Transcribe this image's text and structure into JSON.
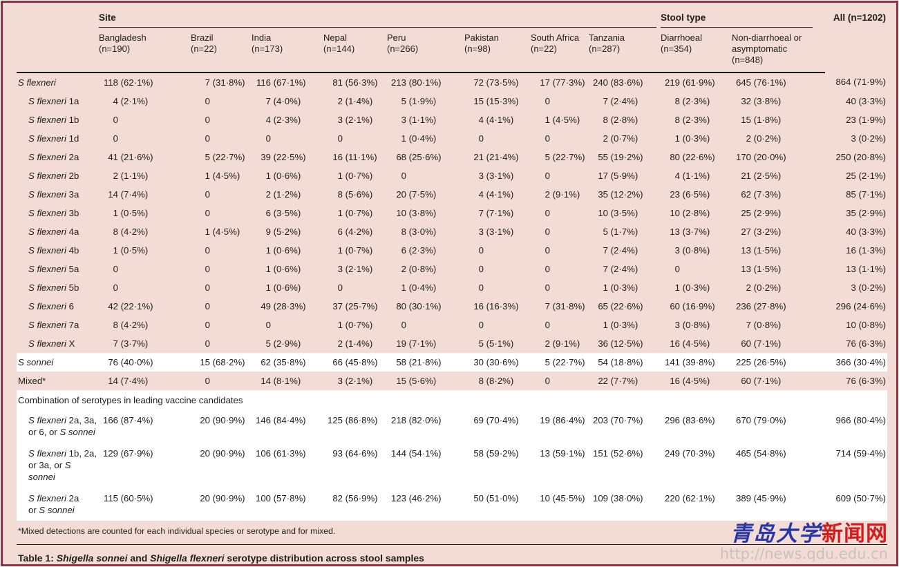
{
  "palette": {
    "table_background": "#f3dcd5",
    "border_red": "#9e2b3f",
    "highlight_row": "#ffffff",
    "rule_black": "#1a1a1a",
    "watermark_blue": "#2936a6",
    "watermark_red": "#d31b1b",
    "watermark_gray": "#c9c2bc"
  },
  "header": {
    "site_group": "Site",
    "stool_group": "Stool type",
    "all_label": "All (n=1202)",
    "site_columns": [
      {
        "name": "Bangladesh",
        "n": "(n=190)"
      },
      {
        "name": "Brazil",
        "n": "(n=22)"
      },
      {
        "name": "India",
        "n": "(n=173)"
      },
      {
        "name": "Nepal",
        "n": "(n=144)"
      },
      {
        "name": "Peru",
        "n": "(n=266)"
      },
      {
        "name": "Pakistan",
        "n": "(n=98)"
      },
      {
        "name": "South Africa",
        "n": "(n=22)"
      },
      {
        "name": "Tanzania",
        "n": "(n=287)"
      }
    ],
    "stool_columns": [
      {
        "name": "Diarrhoeal",
        "n": "(n=354)"
      },
      {
        "name": "Non-diarrhoeal or asymptomatic",
        "n": "(n=848)"
      }
    ]
  },
  "rows": [
    {
      "type": "data",
      "indent": 0,
      "hl": false,
      "label": [
        [
          {
            "t": "S flexneri",
            "i": true
          }
        ]
      ],
      "values": [
        "118 (62·1%)",
        "7 (31·8%)",
        "116 (67·1%)",
        "81 (56·3%)",
        "213 (80·1%)",
        "72 (73·5%)",
        "17 (77·3%)",
        "240 (83·6%)",
        "219 (61·9%)",
        "645 (76·1%)",
        "864 (71·9%)"
      ]
    },
    {
      "type": "data",
      "indent": 1,
      "hl": false,
      "label": [
        [
          {
            "t": "S flexneri",
            "i": true
          },
          {
            "t": " 1a",
            "i": false
          }
        ]
      ],
      "values": [
        "4 (2·1%)",
        "0",
        "7 (4·0%)",
        "2 (1·4%)",
        "5 (1·9%)",
        "15 (15·3%)",
        "0",
        "7 (2·4%)",
        "8 (2·3%)",
        "32 (3·8%)",
        "40 (3·3%)"
      ]
    },
    {
      "type": "data",
      "indent": 1,
      "hl": false,
      "label": [
        [
          {
            "t": "S flexneri",
            "i": true
          },
          {
            "t": " 1b",
            "i": false
          }
        ]
      ],
      "values": [
        "0",
        "0",
        "4 (2·3%)",
        "3 (2·1%)",
        "3 (1·1%)",
        "4 (4·1%)",
        "1 (4·5%)",
        "8 (2·8%)",
        "8 (2·3%)",
        "15 (1·8%)",
        "23 (1·9%)"
      ]
    },
    {
      "type": "data",
      "indent": 1,
      "hl": false,
      "label": [
        [
          {
            "t": "S flexneri",
            "i": true
          },
          {
            "t": " 1d",
            "i": false
          }
        ]
      ],
      "values": [
        "0",
        "0",
        "0",
        "0",
        "1 (0·4%)",
        "0",
        "0",
        "2 (0·7%)",
        "1 (0·3%)",
        "2 (0·2%)",
        "3 (0·2%)"
      ]
    },
    {
      "type": "data",
      "indent": 1,
      "hl": false,
      "label": [
        [
          {
            "t": "S flexneri",
            "i": true
          },
          {
            "t": " 2a",
            "i": false
          }
        ]
      ],
      "values": [
        "41 (21·6%)",
        "5 (22·7%)",
        "39 (22·5%)",
        "16 (11·1%)",
        "68 (25·6%)",
        "21 (21·4%)",
        "5 (22·7%)",
        "55 (19·2%)",
        "80 (22·6%)",
        "170 (20·0%)",
        "250 (20·8%)"
      ]
    },
    {
      "type": "data",
      "indent": 1,
      "hl": false,
      "label": [
        [
          {
            "t": "S flexneri",
            "i": true
          },
          {
            "t": " 2b",
            "i": false
          }
        ]
      ],
      "values": [
        "2 (1·1%)",
        "1 (4·5%)",
        "1 (0·6%)",
        "1 (0·7%)",
        "0",
        "3 (3·1%)",
        "0",
        "17 (5·9%)",
        "4 (1·1%)",
        "21 (2·5%)",
        "25 (2·1%)"
      ]
    },
    {
      "type": "data",
      "indent": 1,
      "hl": false,
      "label": [
        [
          {
            "t": "S flexneri",
            "i": true
          },
          {
            "t": " 3a",
            "i": false
          }
        ]
      ],
      "values": [
        "14 (7·4%)",
        "0",
        "2 (1·2%)",
        "8 (5·6%)",
        "20 (7·5%)",
        "4 (4·1%)",
        "2 (9·1%)",
        "35 (12·2%)",
        "23 (6·5%)",
        "62 (7·3%)",
        "85 (7·1%)"
      ]
    },
    {
      "type": "data",
      "indent": 1,
      "hl": false,
      "label": [
        [
          {
            "t": "S flexneri",
            "i": true
          },
          {
            "t": " 3b",
            "i": false
          }
        ]
      ],
      "values": [
        "1 (0·5%)",
        "0",
        "6 (3·5%)",
        "1 (0·7%)",
        "10 (3·8%)",
        "7 (7·1%)",
        "0",
        "10 (3·5%)",
        "10 (2·8%)",
        "25 (2·9%)",
        "35 (2·9%)"
      ]
    },
    {
      "type": "data",
      "indent": 1,
      "hl": false,
      "label": [
        [
          {
            "t": "S flexneri",
            "i": true
          },
          {
            "t": " 4a",
            "i": false
          }
        ]
      ],
      "values": [
        "8 (4·2%)",
        "1 (4·5%)",
        "9 (5·2%)",
        "6 (4·2%)",
        "8 (3·0%)",
        "3 (3·1%)",
        "0",
        "5 (1·7%)",
        "13 (3·7%)",
        "27 (3·2%)",
        "40 (3·3%)"
      ]
    },
    {
      "type": "data",
      "indent": 1,
      "hl": false,
      "label": [
        [
          {
            "t": "S flexneri",
            "i": true
          },
          {
            "t": " 4b",
            "i": false
          }
        ]
      ],
      "values": [
        "1 (0·5%)",
        "0",
        "1 (0·6%)",
        "1 (0·7%)",
        "6 (2·3%)",
        "0",
        "0",
        "7 (2·4%)",
        "3 (0·8%)",
        "13 (1·5%)",
        "16 (1·3%)"
      ]
    },
    {
      "type": "data",
      "indent": 1,
      "hl": false,
      "label": [
        [
          {
            "t": "S flexneri",
            "i": true
          },
          {
            "t": " 5a",
            "i": false
          }
        ]
      ],
      "values": [
        "0",
        "0",
        "1 (0·6%)",
        "3 (2·1%)",
        "2 (0·8%)",
        "0",
        "0",
        "7 (2·4%)",
        "0",
        "13 (1·5%)",
        "13 (1·1%)"
      ]
    },
    {
      "type": "data",
      "indent": 1,
      "hl": false,
      "label": [
        [
          {
            "t": "S flexneri",
            "i": true
          },
          {
            "t": " 5b",
            "i": false
          }
        ]
      ],
      "values": [
        "0",
        "0",
        "1 (0·6%)",
        "0",
        "1 (0·4%)",
        "0",
        "0",
        "1 (0·3%)",
        "1 (0·3%)",
        "2 (0·2%)",
        "3 (0·2%)"
      ]
    },
    {
      "type": "data",
      "indent": 1,
      "hl": false,
      "label": [
        [
          {
            "t": "S flexneri",
            "i": true
          },
          {
            "t": " 6",
            "i": false
          }
        ]
      ],
      "values": [
        "42 (22·1%)",
        "0",
        "49 (28·3%)",
        "37 (25·7%)",
        "80 (30·1%)",
        "16 (16·3%)",
        "7 (31·8%)",
        "65 (22·6%)",
        "60 (16·9%)",
        "236 (27·8%)",
        "296 (24·6%)"
      ]
    },
    {
      "type": "data",
      "indent": 1,
      "hl": false,
      "label": [
        [
          {
            "t": "S flexneri",
            "i": true
          },
          {
            "t": " 7a",
            "i": false
          }
        ]
      ],
      "values": [
        "8 (4·2%)",
        "0",
        "0",
        "1 (0·7%)",
        "0",
        "0",
        "0",
        "1 (0·3%)",
        "3 (0·8%)",
        "7 (0·8%)",
        "10 (0·8%)"
      ]
    },
    {
      "type": "data",
      "indent": 1,
      "hl": false,
      "label": [
        [
          {
            "t": "S flexneri",
            "i": true
          },
          {
            "t": " X",
            "i": false
          }
        ]
      ],
      "values": [
        "7 (3·7%)",
        "0",
        "5 (2·9%)",
        "2 (1·4%)",
        "19 (7·1%)",
        "5 (5·1%)",
        "2 (9·1%)",
        "36 (12·5%)",
        "16 (4·5%)",
        "60 (7·1%)",
        "76 (6·3%)"
      ]
    },
    {
      "type": "data",
      "indent": 0,
      "hl": true,
      "label": [
        [
          {
            "t": "S sonnei",
            "i": true
          }
        ]
      ],
      "values": [
        "76 (40·0%)",
        "15 (68·2%)",
        "62 (35·8%)",
        "66 (45·8%)",
        "58 (21·8%)",
        "30 (30·6%)",
        "5 (22·7%)",
        "54 (18·8%)",
        "141 (39·8%)",
        "225 (26·5%)",
        "366 (30·4%)"
      ]
    },
    {
      "type": "data",
      "indent": 0,
      "hl": false,
      "label": [
        [
          {
            "t": "Mixed*",
            "i": false
          }
        ]
      ],
      "values": [
        "14 (7·4%)",
        "0",
        "14 (8·1%)",
        "3 (2·1%)",
        "15 (5·6%)",
        "8 (8·2%)",
        "0",
        "22 (7·7%)",
        "16 (4·5%)",
        "60 (7·1%)",
        "76 (6·3%)"
      ]
    },
    {
      "type": "section",
      "label": "Combination of serotypes in leading vaccine candidates"
    },
    {
      "type": "data",
      "combo": true,
      "indent": 1,
      "hl": true,
      "label": [
        [
          {
            "t": "S flexneri",
            "i": true
          },
          {
            "t": " 2a, 3a,",
            "i": false
          }
        ],
        [
          {
            "t": "or 6, or ",
            "i": false
          },
          {
            "t": "S sonnei",
            "i": true
          }
        ]
      ],
      "values": [
        "166 (87·4%)",
        "20 (90·9%)",
        "146 (84·4%)",
        "125 (86·8%)",
        "218 (82·0%)",
        "69 (70·4%)",
        "19 (86·4%)",
        "203 (70·7%)",
        "296 (83·6%)",
        "670 (79·0%)",
        "966 (80·4%)"
      ]
    },
    {
      "type": "data",
      "combo": true,
      "indent": 1,
      "hl": true,
      "label": [
        [
          {
            "t": "S flexneri",
            "i": true
          },
          {
            "t": " 1b, 2a,",
            "i": false
          }
        ],
        [
          {
            "t": "or 3a, or ",
            "i": false
          },
          {
            "t": "S sonnei",
            "i": true
          }
        ]
      ],
      "values": [
        "129 (67·9%)",
        "20 (90·9%)",
        "106 (61·3%)",
        "93 (64·6%)",
        "144 (54·1%)",
        "58 (59·2%)",
        "13 (59·1%)",
        "151 (52·6%)",
        "249 (70·3%)",
        "465 (54·8%)",
        "714 (59·4%)"
      ]
    },
    {
      "type": "data",
      "combo": true,
      "indent": 1,
      "hl": true,
      "label": [
        [
          {
            "t": "S flexneri",
            "i": true
          },
          {
            "t": " 2a",
            "i": false
          }
        ],
        [
          {
            "t": "or ",
            "i": false
          },
          {
            "t": "S sonnei",
            "i": true
          }
        ]
      ],
      "values": [
        "115 (60·5%)",
        "20 (90·9%)",
        "100 (57·8%)",
        "82 (56·9%)",
        "123 (46·2%)",
        "50 (51·0%)",
        "10 (45·5%)",
        "109 (38·0%)",
        "220 (62·1%)",
        "389 (45·9%)",
        "609 (50·7%)"
      ]
    }
  ],
  "footnote": "*Mixed detections are counted for each individual species or serotype and for mixed.",
  "caption": {
    "segments": [
      {
        "t": "Table 1: ",
        "i": false
      },
      {
        "t": "Shigella sonnei",
        "i": true
      },
      {
        "t": " and ",
        "i": false
      },
      {
        "t": "Shigella flexneri",
        "i": true
      },
      {
        "t": " serotype distribution across stool samples",
        "i": false
      }
    ]
  },
  "watermark": {
    "cn_blue": "青岛大学",
    "cn_red": "新闻网",
    "url": "http://news.qdu.edu.cn"
  }
}
